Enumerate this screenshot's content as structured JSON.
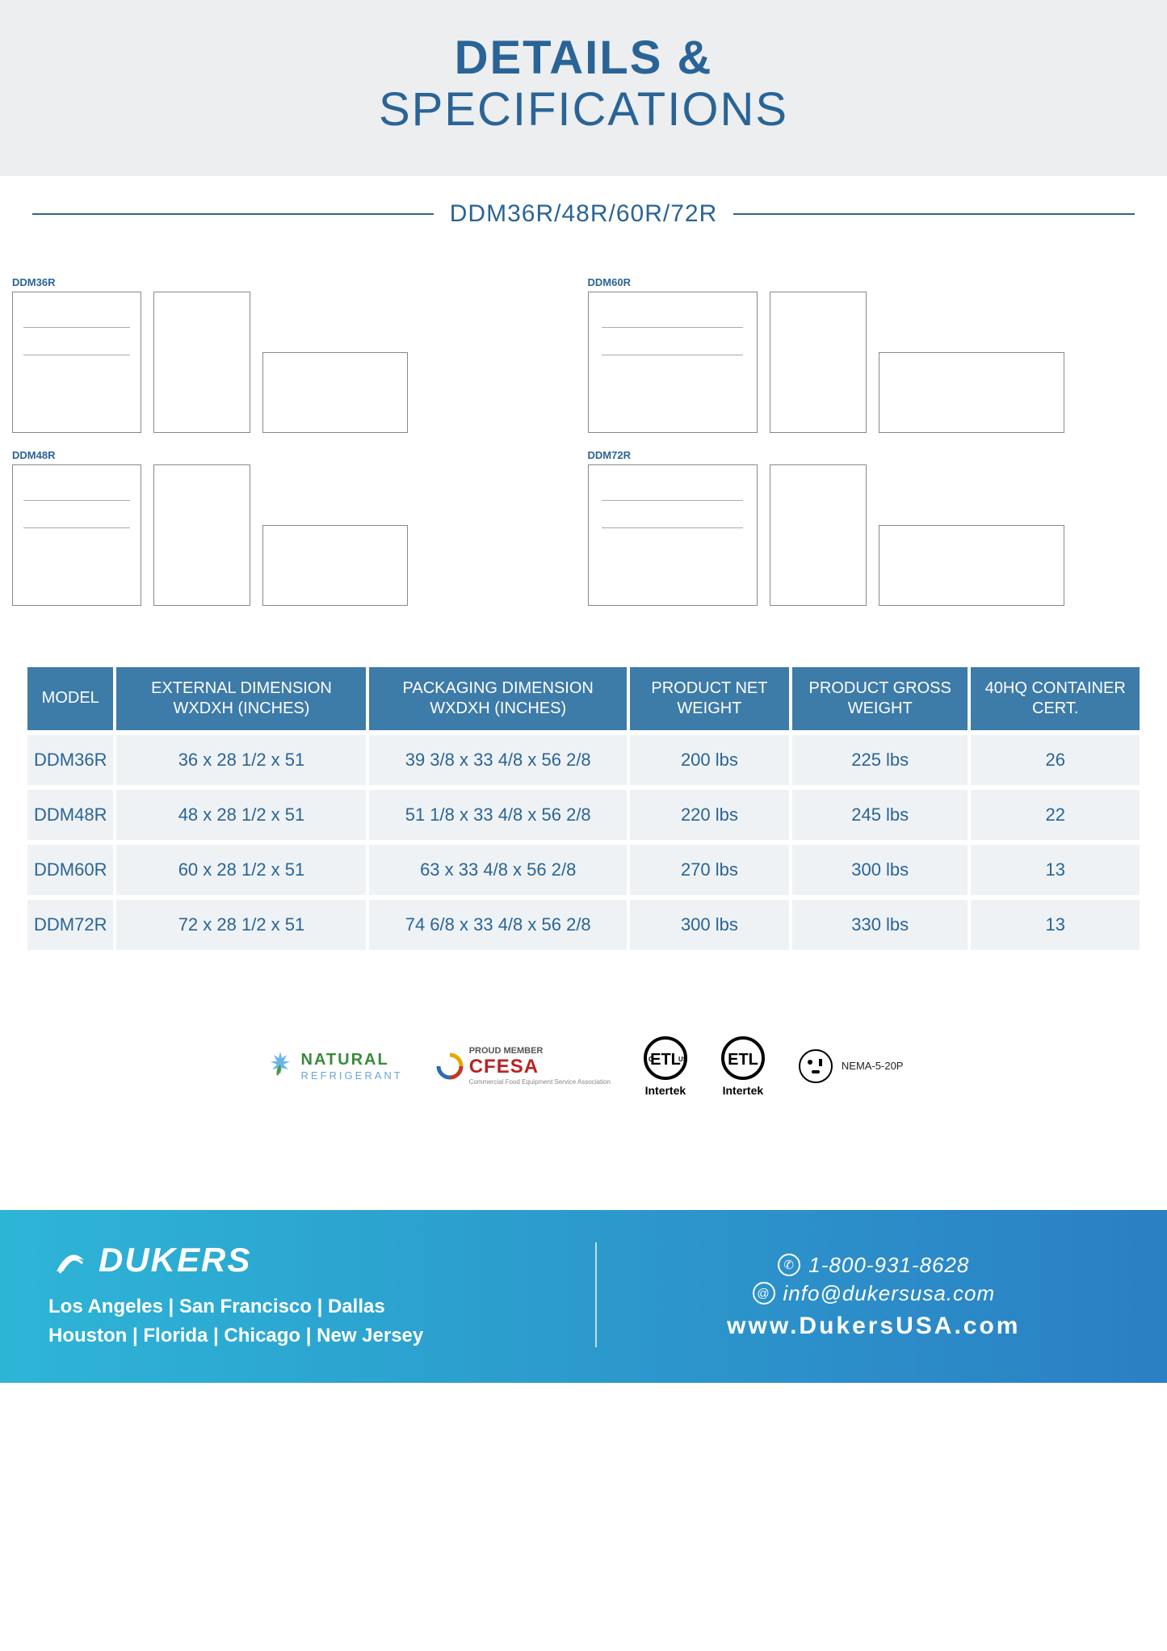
{
  "header": {
    "line1": "DETAILS &",
    "line2": "SPECIFICATIONS"
  },
  "subtitle": "DDM36R/48R/60R/72R",
  "diagram_labels": [
    "DDM36R",
    "DDM60R",
    "DDM48R",
    "DDM72R"
  ],
  "table": {
    "columns": [
      "MODEL",
      "EXTERNAL DIMENSION WXDXH (INCHES)",
      "PACKAGING DIMENSION WXDXH (INCHES)",
      "PRODUCT NET WEIGHT",
      "PRODUCT GROSS WEIGHT",
      "40HQ CONTAINER CERT."
    ],
    "rows": [
      [
        "DDM36R",
        "36 x 28 1/2 x 51",
        "39 3/8 x 33 4/8 x 56 2/8",
        "200 lbs",
        "225 lbs",
        "26"
      ],
      [
        "DDM48R",
        "48 x 28 1/2 x 51",
        "51 1/8 x 33 4/8 x 56 2/8",
        "220 lbs",
        "245 lbs",
        "22"
      ],
      [
        "DDM60R",
        "60 x 28 1/2 x 51",
        "63 x 33 4/8 x 56 2/8",
        "270 lbs",
        "300 lbs",
        "13"
      ],
      [
        "DDM72R",
        "72 x 28 1/2 x 51",
        "74 6/8 x 33 4/8 x 56 2/8",
        "300 lbs",
        "330 lbs",
        "13"
      ]
    ],
    "header_bg": "#3d7ba8",
    "header_color": "#ffffff",
    "cell_bg": "#eef2f4",
    "cell_color": "#2a6496"
  },
  "certs": {
    "natural": {
      "t1": "NATURAL",
      "t2": "REFRIGERANT"
    },
    "cfesa": {
      "top": "PROUD MEMBER",
      "main": "CFESA",
      "sub": "Commercial Food Equipment Service Association"
    },
    "intertek": "Intertek",
    "plug": "NEMA-5-20P"
  },
  "footer": {
    "brand": "DUKERS",
    "locs1": "Los Angeles | San Francisco | Dallas",
    "locs2": "Houston | Florida | Chicago | New Jersey",
    "phone": "1-800-931-8628",
    "email": "info@dukersusa.com",
    "url": "www.DukersUSA.com"
  },
  "colors": {
    "accent": "#2a6496",
    "band": "#eceeef"
  }
}
